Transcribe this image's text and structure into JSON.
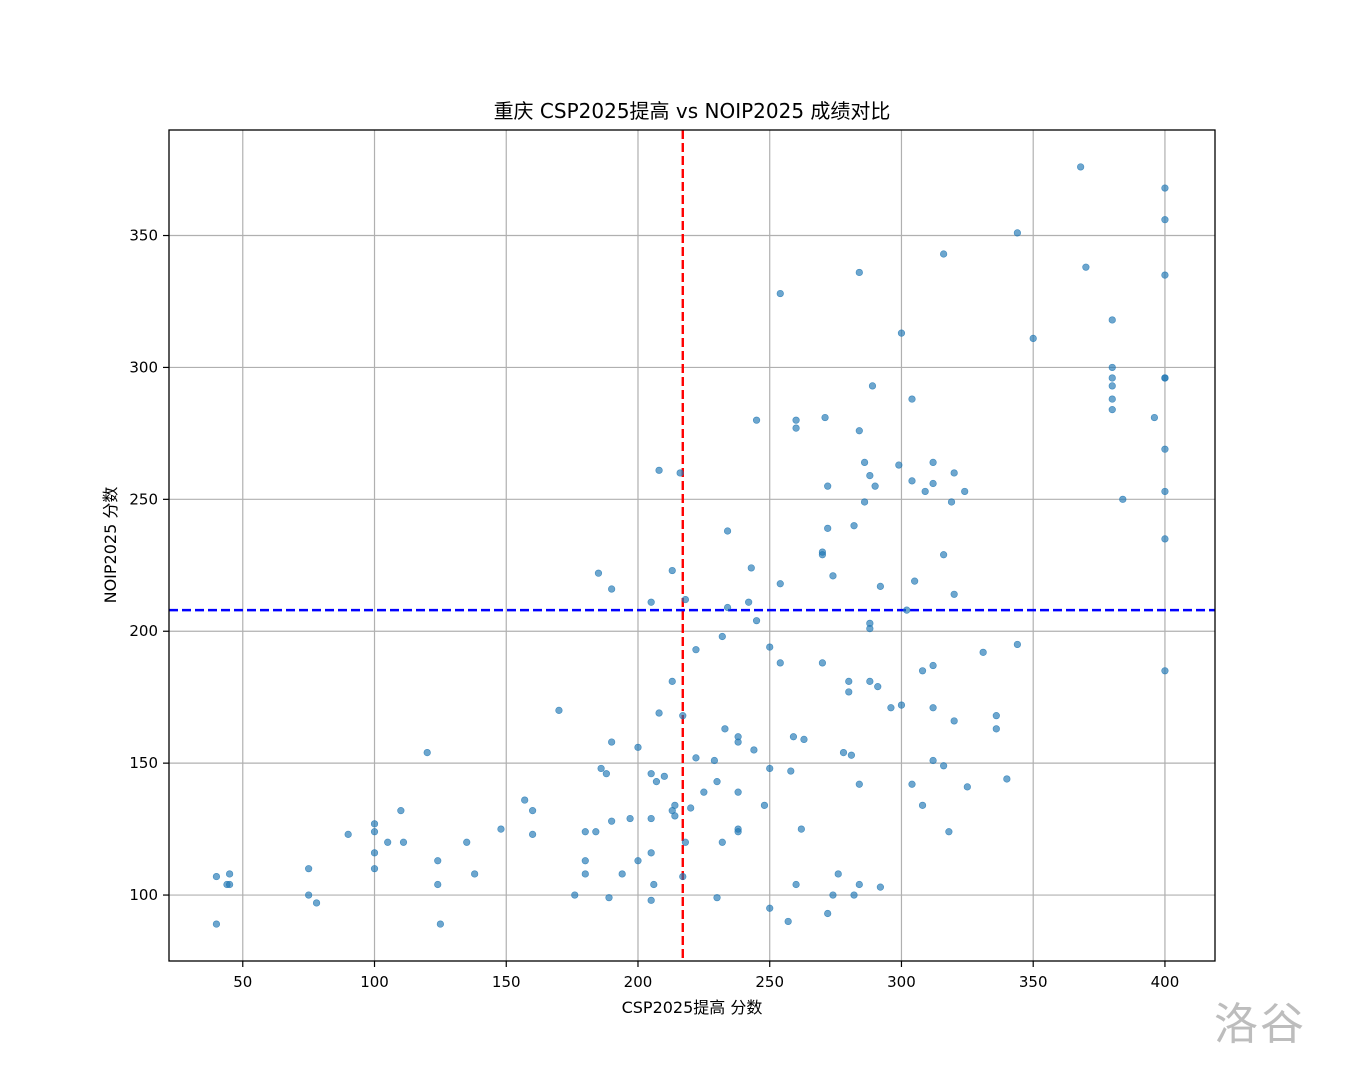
{
  "watermark": "洛谷",
  "chart_data": {
    "type": "scatter",
    "title": "重庆 CSP2025提高 vs NOIP2025 成绩对比",
    "xlabel": "CSP2025提高 分数",
    "ylabel": "NOIP2025 分数",
    "xlim": [
      22,
      419
    ],
    "ylim": [
      75,
      390
    ],
    "xticks": [
      50,
      100,
      150,
      200,
      250,
      300,
      350,
      400
    ],
    "yticks": [
      100,
      150,
      200,
      250,
      300,
      350
    ],
    "grid": true,
    "point_color": "#1f77b4",
    "reference_lines": [
      {
        "orientation": "vertical",
        "axis": "x",
        "value": 217,
        "color": "#ff0000",
        "style": "dashed"
      },
      {
        "orientation": "horizontal",
        "axis": "y",
        "value": 208,
        "color": "#0000ff",
        "style": "dashed"
      }
    ],
    "points": [
      [
        40,
        107
      ],
      [
        40,
        89
      ],
      [
        44,
        104
      ],
      [
        45,
        104
      ],
      [
        45,
        108
      ],
      [
        75,
        110
      ],
      [
        75,
        100
      ],
      [
        78,
        97
      ],
      [
        90,
        123
      ],
      [
        100,
        127
      ],
      [
        100,
        124
      ],
      [
        100,
        116
      ],
      [
        100,
        110
      ],
      [
        105,
        120
      ],
      [
        110,
        132
      ],
      [
        111,
        120
      ],
      [
        120,
        154
      ],
      [
        124,
        113
      ],
      [
        124,
        104
      ],
      [
        125,
        89
      ],
      [
        135,
        120
      ],
      [
        138,
        108
      ],
      [
        148,
        125
      ],
      [
        157,
        136
      ],
      [
        160,
        132
      ],
      [
        160,
        123
      ],
      [
        170,
        170
      ],
      [
        176,
        100
      ],
      [
        180,
        124
      ],
      [
        180,
        113
      ],
      [
        180,
        108
      ],
      [
        184,
        124
      ],
      [
        185,
        222
      ],
      [
        186,
        148
      ],
      [
        188,
        146
      ],
      [
        189,
        99
      ],
      [
        190,
        216
      ],
      [
        190,
        158
      ],
      [
        190,
        128
      ],
      [
        194,
        108
      ],
      [
        197,
        129
      ],
      [
        200,
        156
      ],
      [
        200,
        113
      ],
      [
        205,
        211
      ],
      [
        205,
        146
      ],
      [
        205,
        129
      ],
      [
        205,
        116
      ],
      [
        205,
        98
      ],
      [
        206,
        104
      ],
      [
        207,
        143
      ],
      [
        208,
        261
      ],
      [
        208,
        169
      ],
      [
        210,
        145
      ],
      [
        213,
        181
      ],
      [
        213,
        223
      ],
      [
        213,
        132
      ],
      [
        214,
        134
      ],
      [
        214,
        130
      ],
      [
        216,
        260
      ],
      [
        217,
        168
      ],
      [
        217,
        107
      ],
      [
        218,
        212
      ],
      [
        218,
        120
      ],
      [
        220,
        133
      ],
      [
        222,
        193
      ],
      [
        222,
        152
      ],
      [
        225,
        139
      ],
      [
        229,
        151
      ],
      [
        230,
        143
      ],
      [
        230,
        99
      ],
      [
        232,
        198
      ],
      [
        232,
        120
      ],
      [
        233,
        163
      ],
      [
        234,
        238
      ],
      [
        234,
        209
      ],
      [
        238,
        160
      ],
      [
        238,
        158
      ],
      [
        238,
        139
      ],
      [
        238,
        125
      ],
      [
        238,
        124
      ],
      [
        242,
        211
      ],
      [
        243,
        224
      ],
      [
        244,
        155
      ],
      [
        245,
        204
      ],
      [
        245,
        280
      ],
      [
        248,
        134
      ],
      [
        250,
        194
      ],
      [
        250,
        148
      ],
      [
        250,
        95
      ],
      [
        254,
        328
      ],
      [
        254,
        218
      ],
      [
        254,
        188
      ],
      [
        257,
        90
      ],
      [
        258,
        147
      ],
      [
        259,
        160
      ],
      [
        260,
        280
      ],
      [
        260,
        277
      ],
      [
        260,
        104
      ],
      [
        262,
        125
      ],
      [
        263,
        159
      ],
      [
        270,
        230
      ],
      [
        270,
        229
      ],
      [
        270,
        188
      ],
      [
        271,
        281
      ],
      [
        272,
        255
      ],
      [
        272,
        239
      ],
      [
        272,
        93
      ],
      [
        274,
        221
      ],
      [
        274,
        100
      ],
      [
        276,
        108
      ],
      [
        278,
        154
      ],
      [
        280,
        181
      ],
      [
        280,
        177
      ],
      [
        281,
        153
      ],
      [
        282,
        240
      ],
      [
        282,
        100
      ],
      [
        284,
        336
      ],
      [
        284,
        276
      ],
      [
        284,
        142
      ],
      [
        284,
        104
      ],
      [
        286,
        264
      ],
      [
        286,
        249
      ],
      [
        288,
        259
      ],
      [
        288,
        203
      ],
      [
        288,
        201
      ],
      [
        288,
        181
      ],
      [
        289,
        293
      ],
      [
        290,
        255
      ],
      [
        291,
        179
      ],
      [
        292,
        217
      ],
      [
        292,
        103
      ],
      [
        296,
        171
      ],
      [
        299,
        263
      ],
      [
        300,
        313
      ],
      [
        300,
        172
      ],
      [
        302,
        208
      ],
      [
        304,
        288
      ],
      [
        304,
        257
      ],
      [
        304,
        142
      ],
      [
        305,
        219
      ],
      [
        308,
        185
      ],
      [
        308,
        134
      ],
      [
        309,
        253
      ],
      [
        312,
        264
      ],
      [
        312,
        256
      ],
      [
        312,
        187
      ],
      [
        312,
        171
      ],
      [
        312,
        151
      ],
      [
        316,
        343
      ],
      [
        316,
        229
      ],
      [
        316,
        149
      ],
      [
        318,
        124
      ],
      [
        319,
        249
      ],
      [
        320,
        260
      ],
      [
        320,
        214
      ],
      [
        320,
        166
      ],
      [
        324,
        253
      ],
      [
        325,
        141
      ],
      [
        331,
        192
      ],
      [
        336,
        168
      ],
      [
        336,
        163
      ],
      [
        340,
        144
      ],
      [
        344,
        351
      ],
      [
        344,
        195
      ],
      [
        350,
        311
      ],
      [
        368,
        376
      ],
      [
        370,
        338
      ],
      [
        380,
        318
      ],
      [
        380,
        300
      ],
      [
        380,
        296
      ],
      [
        380,
        293
      ],
      [
        380,
        288
      ],
      [
        380,
        284
      ],
      [
        384,
        250
      ],
      [
        396,
        281
      ],
      [
        400,
        368
      ],
      [
        400,
        356
      ],
      [
        400,
        335
      ],
      [
        400,
        296
      ],
      [
        400,
        296
      ],
      [
        400,
        269
      ],
      [
        400,
        253
      ],
      [
        400,
        235
      ],
      [
        400,
        185
      ]
    ]
  }
}
